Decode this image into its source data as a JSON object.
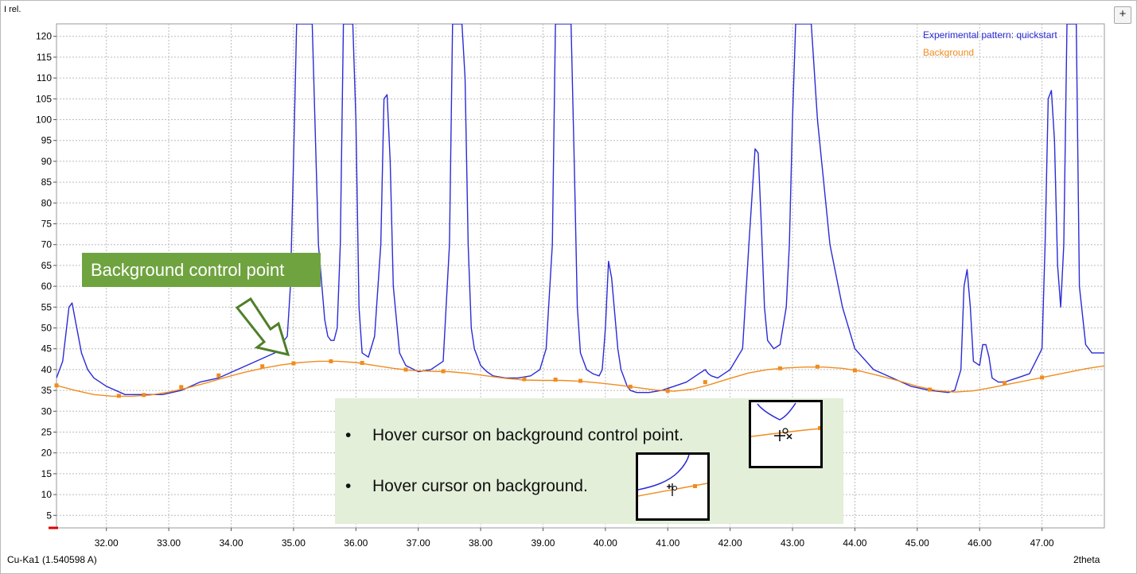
{
  "window": {
    "zoom_button_label": "+"
  },
  "axes": {
    "ylabel": "I rel.",
    "xlabel": "2theta",
    "wavelength_label": "Cu-Ka1 (1.540598 A)",
    "x_ticks": [
      "32.00",
      "33.00",
      "34.00",
      "35.00",
      "36.00",
      "37.00",
      "38.00",
      "39.00",
      "40.00",
      "41.00",
      "42.00",
      "43.00",
      "44.00",
      "45.00",
      "46.00",
      "47.00"
    ],
    "y_ticks": [
      "5",
      "10",
      "15",
      "20",
      "25",
      "30",
      "35",
      "40",
      "45",
      "50",
      "55",
      "60",
      "65",
      "70",
      "75",
      "80",
      "85",
      "90",
      "95",
      "100",
      "105",
      "110",
      "115",
      "120"
    ]
  },
  "legend": {
    "experimental": "Experimental pattern: quickstart",
    "background": "Background"
  },
  "annotations": {
    "callout": "Background control point",
    "hints": [
      "Hover cursor on background control point.",
      "Hover cursor on background."
    ]
  },
  "colors": {
    "experimental": "#2b2bd6",
    "background": "#f08c1e",
    "callout_bg": "#6fa33f",
    "hint_bg": "#e3efd9",
    "grid": "#bcbcbc"
  },
  "chart_data": {
    "type": "line",
    "xlim": [
      31.2,
      48.0
    ],
    "ylim": [
      2,
      123
    ],
    "grid": true,
    "legend_position": "top-right",
    "series": [
      {
        "name": "Experimental pattern: quickstart",
        "x": [
          31.2,
          31.3,
          31.4,
          31.45,
          31.5,
          31.6,
          31.7,
          31.8,
          32.0,
          32.3,
          32.6,
          32.9,
          33.2,
          33.5,
          33.8,
          34.1,
          34.4,
          34.7,
          34.9,
          34.95,
          35.0,
          35.05,
          35.1,
          35.2,
          35.3,
          35.4,
          35.5,
          35.55,
          35.6,
          35.65,
          35.7,
          35.75,
          35.8,
          35.85,
          35.9,
          35.95,
          36.0,
          36.05,
          36.1,
          36.2,
          36.3,
          36.4,
          36.45,
          36.5,
          36.55,
          36.6,
          36.7,
          36.8,
          37.0,
          37.2,
          37.4,
          37.5,
          37.55,
          37.6,
          37.65,
          37.7,
          37.75,
          37.8,
          37.85,
          37.9,
          37.95,
          38.0,
          38.1,
          38.2,
          38.4,
          38.6,
          38.8,
          38.95,
          39.05,
          39.15,
          39.2,
          39.25,
          39.3,
          39.35,
          39.4,
          39.45,
          39.5,
          39.55,
          39.6,
          39.7,
          39.8,
          39.9,
          39.95,
          40.0,
          40.05,
          40.1,
          40.2,
          40.25,
          40.3,
          40.35,
          40.4,
          40.5,
          40.7,
          40.9,
          41.1,
          41.3,
          41.5,
          41.6,
          41.65,
          41.7,
          41.8,
          42.0,
          42.2,
          42.3,
          42.4,
          42.45,
          42.5,
          42.55,
          42.6,
          42.7,
          42.8,
          42.9,
          42.95,
          43.0,
          43.05,
          43.1,
          43.15,
          43.2,
          43.3,
          43.4,
          43.6,
          43.8,
          44.0,
          44.3,
          44.6,
          44.9,
          45.2,
          45.5,
          45.6,
          45.7,
          45.75,
          45.8,
          45.85,
          45.9,
          46.0,
          46.05,
          46.1,
          46.15,
          46.2,
          46.3,
          46.4,
          46.6,
          46.8,
          47.0,
          47.05,
          47.1,
          47.15,
          47.2,
          47.25,
          47.3,
          47.35,
          47.4,
          47.45,
          47.5,
          47.55,
          47.6,
          47.7,
          47.8,
          48.0
        ],
        "values": [
          38,
          42,
          55,
          56,
          52,
          44,
          40,
          38,
          36,
          34,
          34,
          34,
          35,
          37,
          38,
          40,
          42,
          44,
          48,
          60,
          90,
          123,
          123,
          123,
          123,
          70,
          52,
          48,
          47,
          47,
          50,
          70,
          123,
          123,
          123,
          123,
          100,
          55,
          44,
          43,
          48,
          70,
          105,
          106,
          90,
          60,
          44,
          41,
          39.5,
          40,
          42,
          70,
          123,
          123,
          123,
          123,
          110,
          70,
          50,
          45,
          43,
          41,
          39.5,
          38.5,
          38,
          38,
          38.5,
          40,
          45,
          70,
          123,
          123,
          123,
          123,
          123,
          123,
          90,
          55,
          44,
          40,
          39,
          38.5,
          40,
          50,
          66,
          62,
          45,
          40,
          38,
          36,
          35,
          34.5,
          34.5,
          35,
          36,
          37,
          39,
          40,
          39,
          38.5,
          38,
          40,
          45,
          70,
          93,
          92,
          75,
          55,
          47,
          45,
          46,
          55,
          70,
          100,
          123,
          123,
          123,
          123,
          123,
          100,
          70,
          55,
          45,
          40,
          38,
          36,
          35,
          34.5,
          35,
          40,
          60,
          64,
          55,
          42,
          41,
          46,
          46,
          43,
          38,
          37,
          37,
          38,
          39,
          45,
          70,
          105,
          107,
          95,
          65,
          55,
          70,
          123,
          123,
          123,
          123,
          60,
          46,
          44,
          44
        ]
      },
      {
        "name": "Background",
        "x": [
          31.2,
          31.5,
          31.8,
          32.1,
          32.4,
          32.7,
          33.0,
          33.3,
          33.6,
          33.9,
          34.2,
          34.5,
          34.8,
          35.1,
          35.4,
          35.7,
          36.0,
          36.3,
          36.6,
          36.9,
          37.2,
          37.5,
          37.8,
          38.1,
          38.4,
          38.7,
          39.0,
          39.3,
          39.6,
          39.9,
          40.2,
          40.5,
          40.8,
          41.1,
          41.4,
          41.7,
          42.0,
          42.3,
          42.6,
          42.9,
          43.2,
          43.5,
          43.8,
          44.1,
          44.4,
          44.7,
          45.0,
          45.3,
          45.6,
          45.9,
          46.2,
          46.5,
          46.8,
          47.1,
          47.4,
          47.7,
          48.0
        ],
        "values": [
          36.2,
          35.0,
          34.0,
          33.6,
          33.6,
          33.9,
          34.6,
          35.6,
          36.8,
          38.1,
          39.3,
          40.3,
          41.1,
          41.7,
          42.0,
          42.0,
          41.7,
          41.0,
          40.3,
          39.8,
          39.6,
          39.5,
          39.1,
          38.5,
          37.9,
          37.5,
          37.4,
          37.4,
          37.2,
          36.8,
          36.3,
          35.7,
          35.1,
          34.8,
          35.3,
          36.5,
          37.9,
          39.2,
          40.0,
          40.4,
          40.6,
          40.6,
          40.3,
          39.6,
          38.5,
          37.3,
          36.0,
          35.0,
          34.6,
          34.9,
          35.7,
          36.6,
          37.5,
          38.4,
          39.3,
          40.2,
          40.9
        ]
      }
    ],
    "control_points": {
      "x": [
        31.2,
        32.2,
        32.6,
        33.2,
        33.8,
        34.5,
        35.0,
        35.6,
        36.1,
        36.8,
        37.4,
        38.7,
        39.2,
        39.6,
        40.4,
        41.0,
        41.6,
        42.8,
        43.4,
        44.0,
        45.2,
        46.4,
        47.0
      ],
      "values": [
        36.2,
        33.7,
        33.9,
        35.8,
        38.6,
        40.8,
        41.5,
        42.0,
        41.6,
        40.0,
        39.6,
        37.7,
        37.6,
        37.3,
        35.9,
        34.9,
        37.0,
        40.3,
        40.7,
        39.8,
        35.2,
        36.8,
        38.1
      ]
    }
  }
}
